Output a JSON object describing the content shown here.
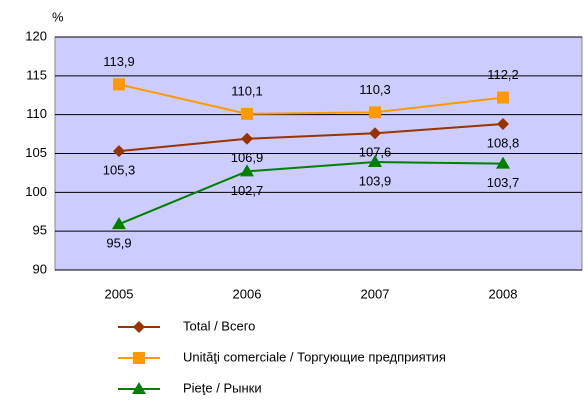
{
  "chart_data": {
    "type": "line",
    "y_label": "%",
    "categories": [
      "2005",
      "2006",
      "2007",
      "2008"
    ],
    "series": [
      {
        "name": "Total / Всего",
        "color": "#993300",
        "marker": "diamond",
        "values": [
          105.3,
          106.9,
          107.6,
          108.8
        ],
        "value_labels": [
          "105,3",
          "106,9",
          "107,6",
          "108,8"
        ]
      },
      {
        "name": "Unităţi comerciale / Торгующие предприятия",
        "color": "#ff9900",
        "marker": "square",
        "values": [
          113.9,
          110.1,
          110.3,
          112.2
        ],
        "value_labels": [
          "113,9",
          "110,1",
          "110,3",
          "112,2"
        ]
      },
      {
        "name": "Pieţe / Рынки",
        "color": "#008000",
        "marker": "triangle",
        "values": [
          95.9,
          102.7,
          103.9,
          103.7
        ],
        "value_labels": [
          "95,9",
          "102,7",
          "103,9",
          "103,7"
        ]
      }
    ],
    "ylim": [
      90,
      120
    ],
    "yticks": [
      90,
      95,
      100,
      105,
      110,
      115,
      120
    ],
    "grid": true
  }
}
